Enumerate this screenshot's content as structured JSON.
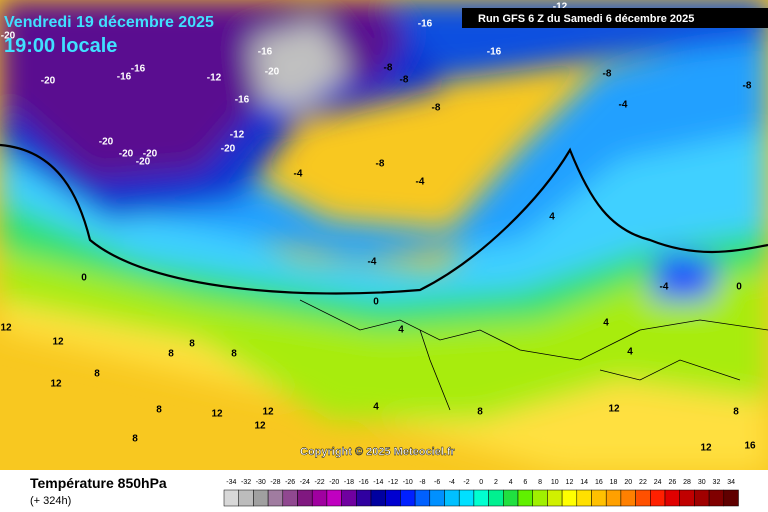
{
  "header": {
    "date": "Vendredi 19 décembre 2025",
    "time": "19:00 locale",
    "run": "Run GFS 6 Z du Samedi 6 décembre 2025",
    "copyright": "Copyright © 2025 Meteociel.fr"
  },
  "legend": {
    "title": "Température 850hPa",
    "lead": "(+ 324h)",
    "scale": [
      {
        "value": -34,
        "color": "#d8d8d8"
      },
      {
        "value": -32,
        "color": "#bcbcbc"
      },
      {
        "value": -30,
        "color": "#a0a0a0"
      },
      {
        "value": -28,
        "color": "#a07ca0"
      },
      {
        "value": -26,
        "color": "#904890"
      },
      {
        "value": -24,
        "color": "#801880"
      },
      {
        "value": -22,
        "color": "#a000a0"
      },
      {
        "value": -20,
        "color": "#c000c0"
      },
      {
        "value": -18,
        "color": "#7000a0"
      },
      {
        "value": -16,
        "color": "#3000a0"
      },
      {
        "value": -14,
        "color": "#0000a0"
      },
      {
        "value": -12,
        "color": "#0000d0"
      },
      {
        "value": -10,
        "color": "#0020ff"
      },
      {
        "value": -8,
        "color": "#0060ff"
      },
      {
        "value": -6,
        "color": "#0090ff"
      },
      {
        "value": -4,
        "color": "#00c0ff"
      },
      {
        "value": -2,
        "color": "#00e0ff"
      },
      {
        "value": 0,
        "color": "#00ffd0"
      },
      {
        "value": 2,
        "color": "#00f090"
      },
      {
        "value": 4,
        "color": "#20e040"
      },
      {
        "value": 6,
        "color": "#60f000"
      },
      {
        "value": 8,
        "color": "#a0f000"
      },
      {
        "value": 10,
        "color": "#d0f000"
      },
      {
        "value": 12,
        "color": "#ffff00"
      },
      {
        "value": 14,
        "color": "#ffe000"
      },
      {
        "value": 16,
        "color": "#ffc000"
      },
      {
        "value": 18,
        "color": "#ffa000"
      },
      {
        "value": 20,
        "color": "#ff8000"
      },
      {
        "value": 22,
        "color": "#ff5000"
      },
      {
        "value": 24,
        "color": "#ff2000"
      },
      {
        "value": 26,
        "color": "#e00000"
      },
      {
        "value": 28,
        "color": "#c00000"
      },
      {
        "value": 30,
        "color": "#a00000"
      },
      {
        "value": 32,
        "color": "#800000"
      },
      {
        "value": 34,
        "color": "#600000"
      }
    ]
  },
  "map": {
    "labels": [
      -20,
      -20,
      -16,
      -16,
      -20,
      -20,
      -20,
      -20,
      -16,
      -20,
      -16,
      -12,
      -12,
      -20,
      -8,
      -8,
      -8,
      -8,
      -4,
      -8,
      -4,
      -8,
      -4,
      -4,
      0,
      0,
      4,
      4,
      4,
      12,
      12,
      8,
      8,
      8,
      8,
      12,
      8,
      12,
      12,
      12,
      8,
      4,
      8,
      12,
      8,
      12,
      16,
      4,
      0,
      -4,
      -16,
      -16,
      -12
    ]
  }
}
